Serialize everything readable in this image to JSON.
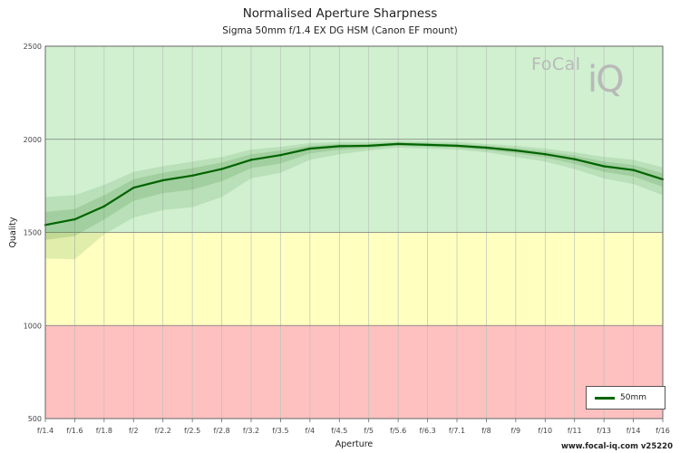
{
  "chart_data": {
    "type": "line",
    "title": "Normalised Aperture Sharpness",
    "subtitle": "Sigma 50mm f/1.4 EX DG HSM (Canon EF mount)",
    "xlabel": "Aperture",
    "ylabel": "Quality",
    "categories": [
      "f/1.4",
      "f/1.6",
      "f/1.8",
      "f/2",
      "f/2.2",
      "f/2.5",
      "f/2.8",
      "f/3.2",
      "f/3.5",
      "f/4",
      "f/4.5",
      "f/5",
      "f/5.6",
      "f/6.3",
      "f/7.1",
      "f/8",
      "f/9",
      "f/10",
      "f/11",
      "f/13",
      "f/14",
      "f/16"
    ],
    "ylim": [
      500,
      2500
    ],
    "yticks": [
      "500",
      "1000",
      "1500",
      "2000",
      "2500"
    ],
    "grid": true,
    "legend_position": "bottom-right",
    "quality_zones": [
      {
        "from": 500,
        "to": 1000,
        "color": "#ffc0c0"
      },
      {
        "from": 1000,
        "to": 1500,
        "color": "#ffffc0"
      },
      {
        "from": 1500,
        "to": 2500,
        "color": "#d0f0d0"
      }
    ],
    "series": [
      {
        "name": "50mm",
        "color": "#006400",
        "values": [
          1540,
          1570,
          1640,
          1740,
          1780,
          1805,
          1840,
          1890,
          1915,
          1950,
          1963,
          1965,
          1975,
          1970,
          1965,
          1955,
          1940,
          1920,
          1893,
          1855,
          1835,
          1785
        ],
        "band_outer_upper": [
          1690,
          1700,
          1755,
          1825,
          1855,
          1880,
          1905,
          1945,
          1960,
          1980,
          1985,
          1985,
          1990,
          1988,
          1985,
          1975,
          1965,
          1950,
          1930,
          1905,
          1890,
          1850
        ],
        "band_outer_lower": [
          1360,
          1355,
          1490,
          1580,
          1620,
          1635,
          1690,
          1790,
          1820,
          1890,
          1920,
          1940,
          1955,
          1950,
          1945,
          1930,
          1905,
          1880,
          1840,
          1790,
          1760,
          1700
        ],
        "band_inner_upper": [
          1610,
          1625,
          1700,
          1785,
          1820,
          1845,
          1875,
          1920,
          1940,
          1965,
          1975,
          1975,
          1983,
          1980,
          1975,
          1965,
          1953,
          1935,
          1912,
          1880,
          1862,
          1818
        ],
        "band_inner_lower": [
          1460,
          1480,
          1570,
          1670,
          1710,
          1730,
          1775,
          1845,
          1870,
          1925,
          1945,
          1952,
          1965,
          1960,
          1955,
          1942,
          1925,
          1903,
          1868,
          1825,
          1800,
          1745
        ]
      }
    ]
  },
  "logo": {
    "line1": "FoCal",
    "line2": "iQ"
  },
  "footer": "www.focal-iq.com  v25220"
}
